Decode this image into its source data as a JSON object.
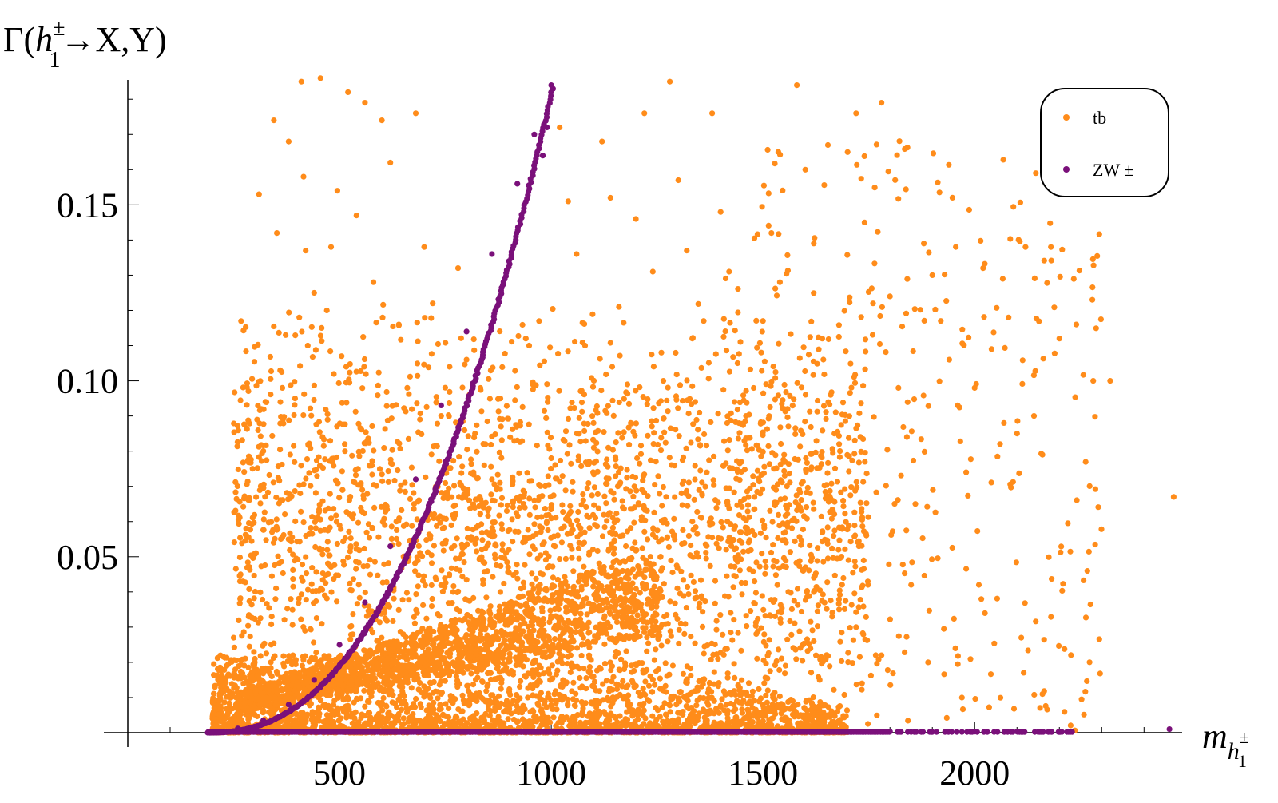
{
  "chart_data": {
    "type": "scatter",
    "title": "",
    "xlabel": {
      "base": "m",
      "sub": "h",
      "subsub": "1",
      "subsup": "±"
    },
    "ylabel": {
      "prefix": "Γ(",
      "base": "h",
      "sup": "±",
      "sub": "1",
      "suffix": "→X,Y)"
    },
    "xlim": [
      0,
      2490
    ],
    "ylim": [
      0,
      0.1855
    ],
    "x_ticks": [
      500,
      1000,
      1500,
      2000
    ],
    "x_tick_labels": [
      "500",
      "1000",
      "1500",
      "2000"
    ],
    "y_ticks": [
      0.05,
      0.1,
      0.15
    ],
    "y_tick_labels": [
      "0.05",
      "0.10",
      "0.15"
    ],
    "grid": false,
    "legend_position": "top-right",
    "series": [
      {
        "name": "tb",
        "color": "#ff8c1a",
        "description_points": [
          [
            250,
            0.027
          ],
          [
            265,
            0.043
          ],
          [
            300,
            0.02
          ],
          [
            310,
            0.153
          ],
          [
            340,
            0.033
          ],
          [
            345,
            0.174
          ],
          [
            352,
            0.142
          ],
          [
            360,
            0.103
          ],
          [
            365,
            0.098
          ],
          [
            380,
            0.168
          ],
          [
            390,
            0.022
          ],
          [
            395,
            0.095
          ],
          [
            405,
            0.118
          ],
          [
            410,
            0.185
          ],
          [
            415,
            0.158
          ],
          [
            420,
            0.137
          ],
          [
            425,
            0.11
          ],
          [
            440,
            0.125
          ],
          [
            455,
            0.186
          ],
          [
            460,
            0.084
          ],
          [
            470,
            0.12
          ],
          [
            480,
            0.138
          ],
          [
            495,
            0.154
          ],
          [
            505,
            0.107
          ],
          [
            520,
            0.182
          ],
          [
            540,
            0.147
          ],
          [
            560,
            0.179
          ],
          [
            580,
            0.128
          ],
          [
            600,
            0.174
          ],
          [
            620,
            0.162
          ],
          [
            640,
            0.116
          ],
          [
            660,
            0.098
          ],
          [
            680,
            0.176
          ],
          [
            700,
            0.138
          ],
          [
            720,
            0.122
          ],
          [
            740,
            0.09
          ],
          [
            760,
            0.104
          ],
          [
            780,
            0.132
          ],
          [
            800,
            0.106
          ],
          [
            820,
            0.085
          ],
          [
            840,
            0.064
          ],
          [
            860,
            0.072
          ],
          [
            880,
            0.095
          ],
          [
            900,
            0.052
          ],
          [
            920,
            0.083
          ],
          [
            940,
            0.112
          ],
          [
            960,
            0.066
          ],
          [
            980,
            0.045
          ],
          [
            1000,
            0.078
          ],
          [
            1020,
            0.172
          ],
          [
            1040,
            0.151
          ],
          [
            1060,
            0.136
          ],
          [
            1080,
            0.11
          ],
          [
            1100,
            0.088
          ],
          [
            1120,
            0.168
          ],
          [
            1140,
            0.152
          ],
          [
            1160,
            0.121
          ],
          [
            1180,
            0.099
          ],
          [
            1200,
            0.146
          ],
          [
            1220,
            0.176
          ],
          [
            1240,
            0.131
          ],
          [
            1260,
            0.108
          ],
          [
            1280,
            0.185
          ],
          [
            1300,
            0.157
          ],
          [
            1320,
            0.137
          ],
          [
            1340,
            0.094
          ],
          [
            1360,
            0.117
          ],
          [
            1380,
            0.176
          ],
          [
            1400,
            0.148
          ],
          [
            1420,
            0.131
          ],
          [
            1440,
            0.105
          ],
          [
            1460,
            0.09
          ],
          [
            1480,
            0.067
          ],
          [
            1500,
            0.117
          ],
          [
            1520,
            0.142
          ],
          [
            1540,
            0.128
          ],
          [
            1560,
            0.087
          ],
          [
            1580,
            0.184
          ],
          [
            1600,
            0.16
          ],
          [
            1620,
            0.139
          ],
          [
            1640,
            0.112
          ],
          [
            1660,
            0.096
          ],
          [
            1680,
            0.082
          ],
          [
            1700,
            0.165
          ],
          [
            1720,
            0.176
          ],
          [
            1740,
            0.145
          ],
          [
            1760,
            0.122
          ],
          [
            1780,
            0.179
          ],
          [
            1800,
            0.124
          ],
          [
            1820,
            0.098
          ],
          [
            1840,
            0.084
          ],
          [
            1860,
            0.065
          ],
          [
            1880,
            0.139
          ],
          [
            1900,
            0.13
          ],
          [
            1920,
            0.117
          ],
          [
            1940,
            0.106
          ],
          [
            1960,
            0.093
          ],
          [
            1980,
            0.074
          ],
          [
            2000,
            0.098
          ],
          [
            2020,
            0.132
          ],
          [
            2040,
            0.109
          ],
          [
            2060,
            0.082
          ],
          [
            2080,
            0.118
          ],
          [
            2100,
            0.085
          ],
          [
            2120,
            0.138
          ],
          [
            2140,
            0.09
          ],
          [
            2160,
            0.079
          ],
          [
            2180,
            0.138
          ],
          [
            2200,
            0.112
          ],
          [
            2240,
            0.116
          ],
          [
            2280,
            0.1
          ],
          [
            2320,
            0.1
          ],
          [
            2470,
            0.067
          ],
          [
            1850,
            0.042
          ],
          [
            2010,
            0.042
          ],
          [
            2110,
            0.027
          ],
          [
            2160,
            0.011
          ],
          [
            1970,
            0.01
          ],
          [
            1890,
            0.02
          ],
          [
            1780,
            0.022
          ],
          [
            1720,
            0.03
          ],
          [
            1680,
            0.035
          ],
          [
            1620,
            0.026
          ],
          [
            1560,
            0.04
          ],
          [
            1480,
            0.043
          ]
        ]
      },
      {
        "name": "ZW ±",
        "color": "#7a107a",
        "description_points": [
          [
            200,
            0.0002
          ],
          [
            260,
            0.0012
          ],
          [
            320,
            0.0035
          ],
          [
            380,
            0.008
          ],
          [
            440,
            0.015
          ],
          [
            500,
            0.025
          ],
          [
            560,
            0.037
          ],
          [
            620,
            0.053
          ],
          [
            680,
            0.072
          ],
          [
            740,
            0.093
          ],
          [
            800,
            0.114
          ],
          [
            860,
            0.136
          ],
          [
            920,
            0.156
          ],
          [
            960,
            0.17
          ],
          [
            1000,
            0.184
          ],
          [
            980,
            0.164
          ],
          [
            990,
            0.172
          ],
          [
            1800,
            0.0003
          ],
          [
            1900,
            0.0002
          ],
          [
            2000,
            0.0003
          ],
          [
            2100,
            0.0003
          ],
          [
            2200,
            0.0002
          ],
          [
            2460,
            0.001
          ]
        ]
      }
    ]
  }
}
